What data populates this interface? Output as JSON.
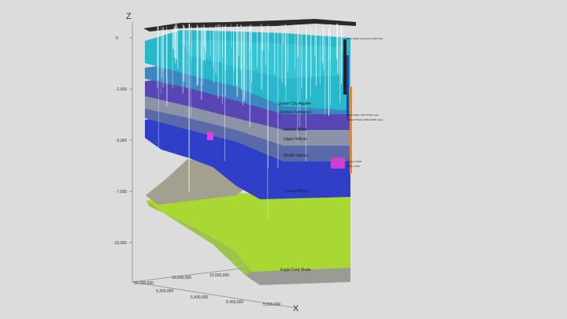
{
  "axes": {
    "z_label": "Z",
    "x_label": "X",
    "z_ticks": [
      "0",
      "-2,500",
      "-5,000",
      "-7,500",
      "-10,000"
    ],
    "x_ticks": [
      "5,300,000",
      "5,400,000",
      "5,450,000",
      "5,500,000"
    ],
    "y_ticks": [
      "10,700,000",
      "10,600,000",
      "10,500,000"
    ]
  },
  "layers": [
    {
      "name": "Queen City Aquifer",
      "color": "#27b8cc"
    },
    {
      "name": "Reklaw Formation",
      "color": "#3a87c2"
    },
    {
      "name": "Carrizo Sand",
      "color": "#5846b4"
    },
    {
      "name": "Upper Wilcox",
      "color": "#7a86a8"
    },
    {
      "name": "Middle Wilcox",
      "color": "#5a6aa8"
    },
    {
      "name": "Lower Wilcox",
      "color": "#2e3fc8"
    },
    {
      "name": "Eagle Ford Shale",
      "color": "#a9d733"
    }
  ],
  "legend": {
    "wells_caption": "Water Wells (Colored by Well Use)",
    "fresh_water": "Fresh Water (TDS<1000 mg/L)",
    "brackish_water": "Brackish Water (1000-10000 mg/L)",
    "injection_wells": "Injection Wells",
    "wells_in_plan": "Wells in Plan"
  }
}
